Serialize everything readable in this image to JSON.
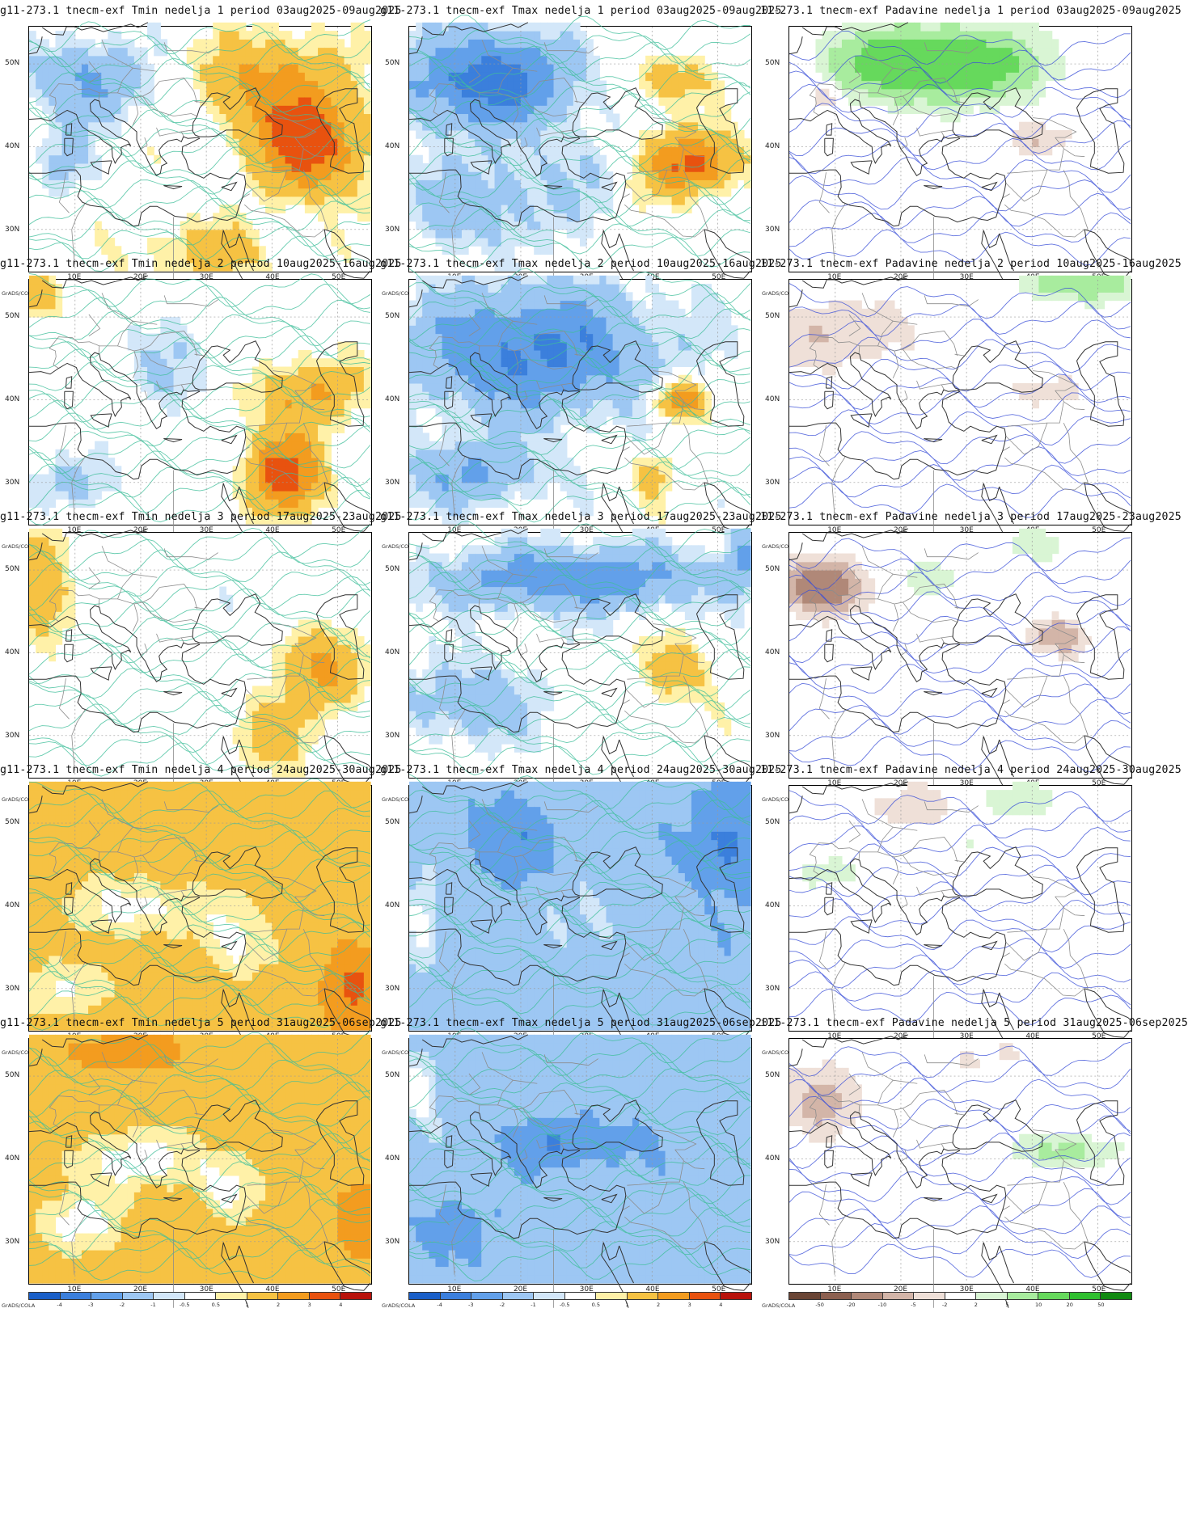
{
  "legend": {
    "grads_label": "GrADS/COLA",
    "temp_ticks": [
      "-4",
      "-3",
      "-2",
      "-1",
      "-0.5",
      "0.5",
      "1",
      "2",
      "3",
      "4"
    ],
    "temp_colors": [
      "#1a5fc8",
      "#3b7fdc",
      "#62a0ea",
      "#9dc7f3",
      "#d3e7f9",
      "#ffffff",
      "#fff1a8",
      "#f6c243",
      "#f39c1f",
      "#e8520f",
      "#b8120b"
    ],
    "precip_ticks": [
      "-50",
      "-20",
      "-10",
      "-5",
      "-2",
      "2",
      "5",
      "10",
      "20",
      "50"
    ],
    "precip_colors": [
      "#6a4535",
      "#8c6050",
      "#b08878",
      "#d3b5a8",
      "#efe0d8",
      "#ffffff",
      "#d9f5d4",
      "#a8ec9e",
      "#66d95c",
      "#2fbf2f",
      "#118a11"
    ]
  },
  "axes": {
    "lat_labels": [
      "50N",
      "40N",
      "30N"
    ],
    "lon_labels": [
      "10E",
      "20E",
      "30E",
      "40E",
      "50E"
    ]
  },
  "panels": [
    {
      "title": "g11-273.1 tnecm-exf Tmin nedelja 1 period 03aug2025-09aug2025",
      "kind": "temp",
      "field": "tmin_w1"
    },
    {
      "title": "g11-273.1 tnecm-exf Tmax nedelja 1 period 03aug2025-09aug2025",
      "kind": "temp",
      "field": "tmax_w1"
    },
    {
      "title": "11-273.1 tnecm-exf Padavine nedelja 1 period 03aug2025-09aug2025",
      "kind": "precip",
      "field": "pr_w1"
    },
    {
      "title": "g11-273.1 tnecm-exf Tmin nedelja 2 period 10aug2025-16aug2025",
      "kind": "temp",
      "field": "tmin_w2"
    },
    {
      "title": "g11-273.1 tnecm-exf Tmax nedelja 2 period 10aug2025-16aug2025",
      "kind": "temp",
      "field": "tmax_w2"
    },
    {
      "title": "11-273.1 tnecm-exf Padavine nedelja 2 period 10aug2025-16aug2025",
      "kind": "precip",
      "field": "pr_w2"
    },
    {
      "title": "g11-273.1 tnecm-exf Tmin nedelja 3 period 17aug2025-23aug2025",
      "kind": "temp",
      "field": "tmin_w3"
    },
    {
      "title": "g11-273.1 tnecm-exf Tmax nedelja 3 period 17aug2025-23aug2025",
      "kind": "temp",
      "field": "tmax_w3"
    },
    {
      "title": "11-273.1 tnecm-exf Padavine nedelja 3 period 17aug2025-23aug2025",
      "kind": "precip",
      "field": "pr_w3"
    },
    {
      "title": "g11-273.1 tnecm-exf Tmin nedelja 4 period 24aug2025-30aug2025",
      "kind": "temp",
      "field": "tmin_w4"
    },
    {
      "title": "g11-273.1 tnecm-exf Tmax nedelja 4 period 24aug2025-30aug2025",
      "kind": "temp",
      "field": "tmax_w4"
    },
    {
      "title": "11-273.1 tnecm-exf Padavine nedelja 4 period 24aug2025-30aug2025",
      "kind": "precip",
      "field": "pr_w4"
    },
    {
      "title": "g11-273.1 tnecm-exf Tmin nedelja 5 period 31aug2025-06sep2025",
      "kind": "temp",
      "field": "tmin_w5"
    },
    {
      "title": "g11-273.1 tnecm-exf Tmax nedelja 5 period 31aug2025-06sep2025",
      "kind": "temp",
      "field": "tmax_w5"
    },
    {
      "title": "i11-273.1 tnecm-exf Padavine nedelja 5 period 31aug2025-06sep2025",
      "kind": "precip",
      "field": "pr_w5"
    }
  ]
}
